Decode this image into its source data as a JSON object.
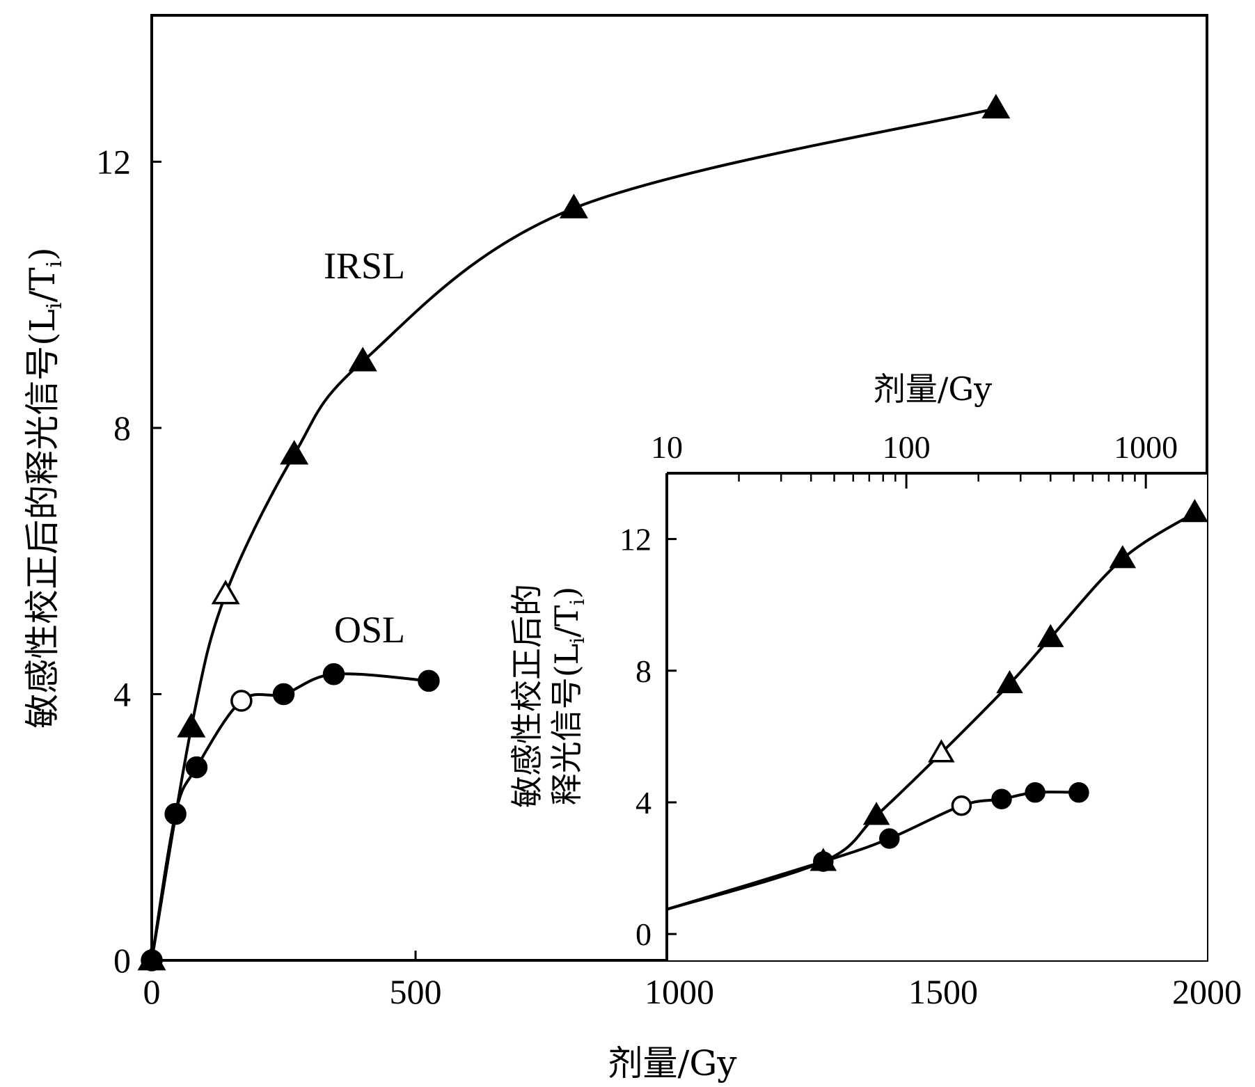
{
  "chart_data": [
    {
      "type": "scatter",
      "xlabel": "剂量/Gy",
      "ylabel": "敏感性校正后的释光信号(L",
      "ylabel_sub": "i",
      "ylabel_mid": "/T",
      "ylabel_sub2": "i",
      "ylabel_end": ")",
      "xlim": [
        0,
        2000
      ],
      "ylim": [
        0,
        14.2
      ],
      "xticks": [
        0,
        500,
        1000,
        1500,
        2000
      ],
      "xtick_labels": [
        "0",
        "500",
        "1000",
        "1500",
        "2000"
      ],
      "yticks": [
        0,
        4,
        8,
        12
      ],
      "ytick_labels": [
        "0",
        "4",
        "8",
        "12"
      ],
      "series": [
        {
          "name": "IRSL",
          "marker": "triangle",
          "x": [
            0,
            75,
            140,
            270,
            400,
            800,
            1600
          ],
          "y": [
            0,
            3.5,
            5.5,
            7.6,
            9.0,
            11.3,
            12.8
          ],
          "hollow": [
            false,
            false,
            true,
            false,
            false,
            false,
            false
          ]
        },
        {
          "name": "OSL",
          "marker": "circle",
          "x": [
            0,
            45,
            85,
            170,
            250,
            345,
            525
          ],
          "y": [
            0,
            2.2,
            2.9,
            3.9,
            4.0,
            4.3,
            4.2
          ],
          "hollow": [
            false,
            false,
            false,
            true,
            false,
            false,
            false
          ]
        }
      ]
    },
    {
      "type": "scatter",
      "scale": "log-x",
      "xlabel": "剂量/Gy",
      "ylabel_line1": "敏感性校正后的",
      "ylabel_line2": "释光信号(L",
      "ylabel_sub": "i",
      "ylabel_mid": "/T",
      "ylabel_sub2": "i",
      "ylabel_end": ")",
      "xlim": [
        10,
        1800
      ],
      "ylim": [
        -0.8,
        14.0
      ],
      "xticks": [
        10,
        100,
        1000
      ],
      "xtick_labels": [
        "10",
        "100",
        "1000"
      ],
      "yticks": [
        0,
        4,
        8,
        12
      ],
      "ytick_labels": [
        "0",
        "4",
        "8",
        "12"
      ],
      "series": [
        {
          "name": "IRSL",
          "marker": "triangle",
          "x": [
            45,
            75,
            140,
            270,
            400,
            800,
            1600
          ],
          "y": [
            2.2,
            3.6,
            5.5,
            7.6,
            9.0,
            11.4,
            12.8
          ],
          "hollow": [
            false,
            false,
            true,
            false,
            false,
            false,
            false
          ]
        },
        {
          "name": "OSL",
          "marker": "circle",
          "x": [
            45,
            85,
            170,
            250,
            345,
            525
          ],
          "y": [
            2.2,
            2.9,
            3.9,
            4.1,
            4.3,
            4.3
          ],
          "hollow": [
            false,
            false,
            true,
            false,
            false,
            false
          ]
        }
      ]
    }
  ]
}
